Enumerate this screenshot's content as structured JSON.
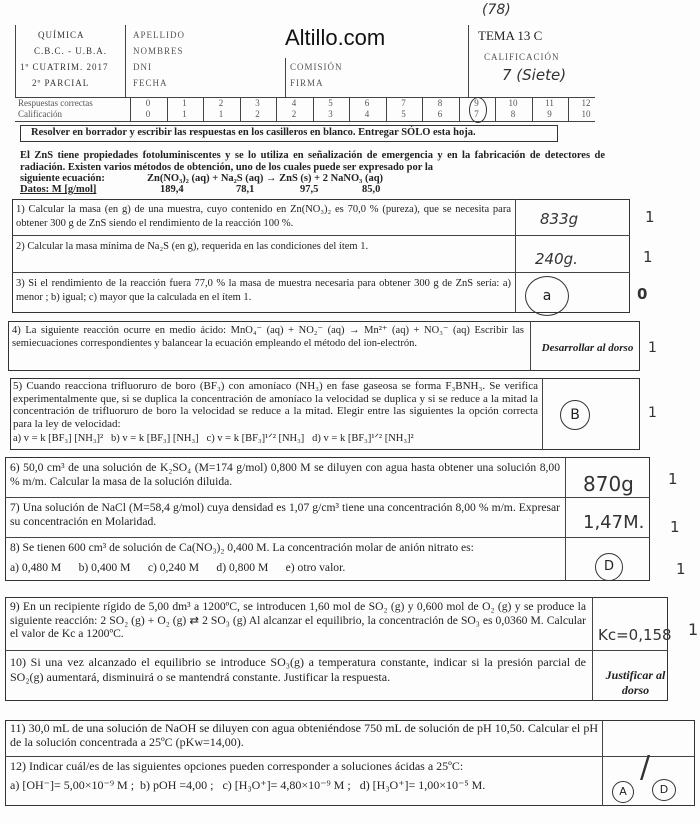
{
  "watermark": "Altillo.com",
  "header": {
    "course": [
      "QUÍMICA",
      "C.B.C. - U.B.A.",
      "1º CUATRIM. 2017",
      "2º PARCIAL"
    ],
    "fields": [
      "APELLIDO",
      "NOMBRES",
      "DNI",
      "FECHA"
    ],
    "fields_mid": [
      "COMISIÓN",
      "FIRMA"
    ],
    "tema": "TEMA 13 C",
    "calificacion_label": "CALIFICACIÓN",
    "calificacion_value": "7 (Siete)",
    "page_mark": "(78)"
  },
  "score_table": {
    "row1_label": "Respuestas correctas",
    "row2_label": "Calificación",
    "correct": [
      "0",
      "1",
      "2",
      "3",
      "4",
      "5",
      "6",
      "7",
      "8",
      "9",
      "10",
      "11",
      "12"
    ],
    "grade": [
      "0",
      "1",
      "1",
      "2",
      "2",
      "3",
      "4",
      "5",
      "6",
      "7",
      "8",
      "9",
      "10"
    ],
    "circled_index": 9
  },
  "instruction": "Resolver en borrador y escribir las respuestas en los casilleros en blanco. Entregar SÓLO esta hoja.",
  "intro": {
    "text": "El ZnS tiene propiedades fotoluminiscentes y se lo utiliza en señalización de emergencia y en la fabricación de detectores de radiación. Existen varios métodos de obtención, uno de los cuales puede ser expresado por la",
    "eq_label": "siguiente ecuación:",
    "equation": "Zn(NO₃)₂ (aq) + Na₂S (aq) → ZnS (s) + 2 NaNO₃ (aq)",
    "data_label": "Datos:  M [g/mol]",
    "masses": [
      "189,4",
      "78,1",
      "97,5",
      "85,0"
    ]
  },
  "questions": [
    {
      "text": "1) Calcular la masa (en g) de una muestra, cuyo contenido en Zn(NO₃)₂ es 70,0 % (pureza), que se necesita para obtener 300 g de ZnS siendo el rendimiento de la reacción 100 %.",
      "answer": "833g",
      "mark": "1"
    },
    {
      "text": "2) Calcular la masa mínima de Na₂S (en g), requerida en las condiciones del ítem 1.",
      "answer": "240g.",
      "mark": "1"
    },
    {
      "text": "3) Si el rendimiento de la reacción fuera 77,0 % la masa de muestra necesaria para obtener 300 g de ZnS sería: a) menor ; b) igual; c) mayor que la calculada en el ítem 1.",
      "answer": "a",
      "mark": "0"
    },
    {
      "text": "4) La siguiente reacción ocurre en medio ácido: MnO₄⁻ (aq) + NO₂⁻ (aq) → Mn²⁺ (aq) + NO₃⁻ (aq) Escribir las semiecuaciones correspondientes y balancear la ecuación empleando el método del ion-electrón.",
      "answer": "Desarrollar al dorso",
      "mark": "1"
    },
    {
      "text": "5) Cuando reacciona trifluoruro de boro (BF₃) con amoníaco (NH₃) en fase gaseosa se forma F₃BNH₃. Se verifica experimentalmente que, si se duplica la concentración de amoníaco la velocidad se duplica y si se reduce a la mitad la concentración de trifluoruro de boro la velocidad se reduce a la mitad. Elegir entre las siguientes la opción correcta para la ley de velocidad:",
      "options": "a) v = k [BF₃] [NH₃]²   b) v = k [BF₃] [NH₃]   c) v = k [BF₃]¹ᐟ² [NH₃]   d) v = k [BF₃]¹ᐟ² [NH₃]²",
      "answer": "B",
      "mark": "1"
    },
    {
      "text": "6) 50,0 cm³ de una solución de K₂SO₄ (M=174 g/mol) 0,800 M se diluyen con agua hasta obtener una solución 8,00 % m/m. Calcular la masa de la solución diluida.",
      "answer": "870g",
      "mark": "1"
    },
    {
      "text": "7) Una solución de NaCl (M=58,4 g/mol) cuya densidad es 1,07 g/cm³ tiene una concentración 8,00 % m/m. Expresar su concentración en  Molaridad.",
      "answer": "1,47M.",
      "mark": "1"
    },
    {
      "text": "8) Se tienen 600 cm³ de solución de Ca(NO₃)₂ 0,400 M. La concentración molar de anión nitrato es:",
      "options": "a) 0,480 M      b) 0,400 M      c) 0,240 M      d) 0,800 M      e) otro valor.",
      "answer": "D",
      "mark": "1"
    },
    {
      "text": "9) En un recipiente rígido de 5,00 dm³ a 1200ºC, se introducen 1,60 mol de SO₂ (g) y 0,600 mol de O₂ (g) y se produce la siguiente reacción:   2 SO₂ (g) + O₂ (g) ⇄ 2 SO₃ (g) Al alcanzar el equilibrio, la concentración de SO₃ es 0,0360 M. Calcular el valor de Kc a 1200ºC.",
      "answer": "Kc=0,158",
      "mark": "1"
    },
    {
      "text": "10) Si una vez alcanzado el equilibrio se introduce SO₃(g) a temperatura constante, indicar si la presión parcial de SO₂(g) aumentará, disminuirá o se mantendrá constante. Justificar la respuesta.",
      "answer": "Justificar al dorso",
      "mark": ""
    },
    {
      "text": "11) 30,0 mL de una solución de NaOH se diluyen con agua obteniéndose 750 mL de solución de pH 10,50. Calcular el pH de la solución concentrada a 25ºC (pKw=14,00).",
      "answer": "/",
      "mark": ""
    },
    {
      "text": "12) Indicar cuál/es de las siguientes opciones pueden corresponder a soluciones ácidas a 25ºC:",
      "options": "a) [OH⁻]= 5,00×10⁻⁹ M ;  b) pOH =4,00 ;   c) [H₃O⁺]= 4,80×10⁻⁹ M ;   d) [H₃O⁺]= 1,00×10⁻⁵ M.",
      "answer_a": "A",
      "answer_b": "D",
      "mark": ""
    }
  ]
}
